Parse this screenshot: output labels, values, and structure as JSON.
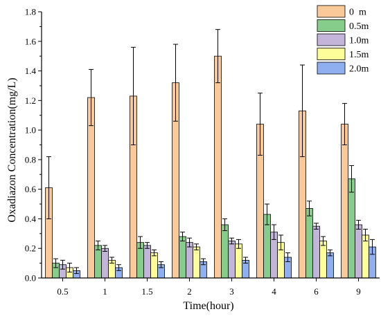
{
  "chart_data": {
    "type": "bar",
    "xlabel": "Time(hour)",
    "ylabel": "Oxadiazon Concentration(mg/L)",
    "categories": [
      "0.5",
      "1",
      "1.5",
      "2",
      "3",
      "4",
      "6",
      "9"
    ],
    "ylim": [
      0,
      1.8
    ],
    "yticks": [
      "0.0",
      "0.2",
      "0.4",
      "0.6",
      "0.8",
      "1.0",
      "1.2",
      "1.4",
      "1.6",
      "1.8"
    ],
    "legend_position": "top-right",
    "grid": false,
    "series": [
      {
        "name": "0  m",
        "color": "#f9c99a",
        "values": [
          0.61,
          1.22,
          1.23,
          1.32,
          1.5,
          1.04,
          1.13,
          1.04
        ],
        "errors": [
          0.21,
          0.19,
          0.33,
          0.26,
          0.18,
          0.21,
          0.31,
          0.14
        ]
      },
      {
        "name": "0.5m",
        "color": "#86cc8a",
        "values": [
          0.1,
          0.22,
          0.24,
          0.28,
          0.36,
          0.43,
          0.47,
          0.67
        ],
        "errors": [
          0.03,
          0.03,
          0.04,
          0.03,
          0.04,
          0.07,
          0.05,
          0.09
        ]
      },
      {
        "name": "1.0m",
        "color": "#c3b4d9",
        "values": [
          0.09,
          0.2,
          0.22,
          0.24,
          0.25,
          0.31,
          0.35,
          0.36
        ],
        "errors": [
          0.03,
          0.02,
          0.02,
          0.03,
          0.02,
          0.05,
          0.02,
          0.03
        ]
      },
      {
        "name": "1.5m",
        "color": "#fdfd99",
        "values": [
          0.07,
          0.12,
          0.17,
          0.21,
          0.23,
          0.24,
          0.25,
          0.29
        ],
        "errors": [
          0.03,
          0.02,
          0.02,
          0.02,
          0.03,
          0.05,
          0.03,
          0.04
        ]
      },
      {
        "name": "2.0m",
        "color": "#8faff0",
        "values": [
          0.05,
          0.07,
          0.09,
          0.11,
          0.12,
          0.14,
          0.17,
          0.21
        ],
        "errors": [
          0.02,
          0.02,
          0.02,
          0.02,
          0.02,
          0.03,
          0.02,
          0.05
        ]
      }
    ]
  }
}
